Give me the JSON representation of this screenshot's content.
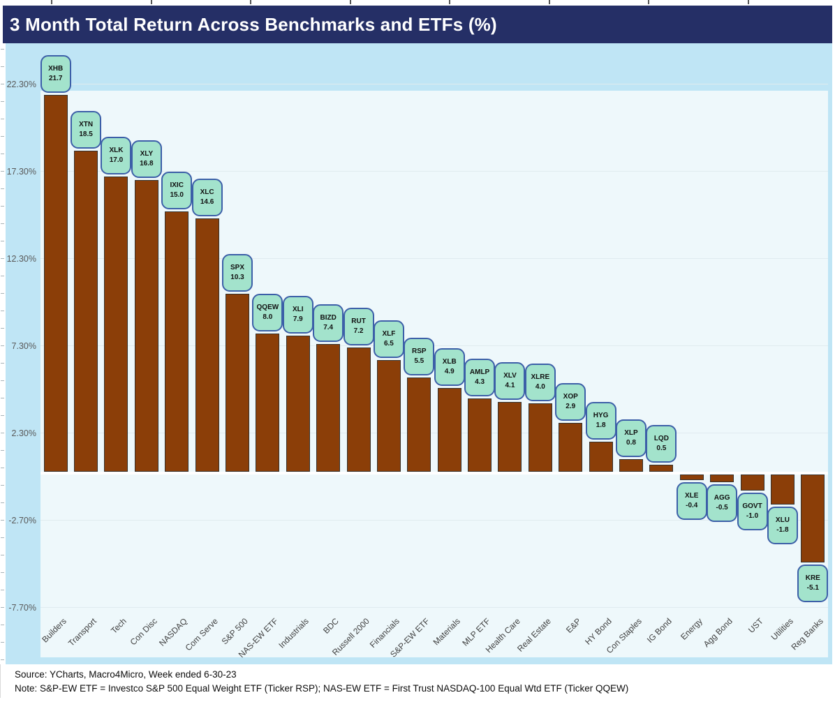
{
  "title": "3 Month Total Return Across Benchmarks and ETFs (%)",
  "footer": {
    "source": "Source: YCharts, Macro4Micro, Week ended 6-30-23",
    "note": "Note: S&P-EW ETF = Investco S&P 500 Equal Weight ETF (Ticker RSP); NAS-EW ETF = First Trust NASDAQ-100 Equal Wtd ETF (Ticker QQEW)"
  },
  "colors": {
    "title_bar_bg": "#252F66",
    "title_text": "#FFFFFF",
    "chart_outer_bg": "#BFE5F5",
    "plot_bg": "#EEF8FB",
    "bar_fill": "#8B3E08",
    "bar_border": "#35312C",
    "label_box_fill": "#A3E3CC",
    "label_box_border": "#3C5FA8",
    "gridline": "#E0EBEF",
    "axis_text": "#595959",
    "x_axis_text": "#3F3F3F"
  },
  "chart_data": {
    "type": "bar",
    "title": "3 Month Total Return Across Benchmarks and ETFs (%)",
    "grid": true,
    "legend": "none",
    "ylim": [
      -7.9,
      24.3
    ],
    "y_ticks": [
      {
        "value": 22.3,
        "label": "22.30%"
      },
      {
        "value": 17.3,
        "label": "17.30%"
      },
      {
        "value": 12.3,
        "label": "12.30%"
      },
      {
        "value": 7.3,
        "label": "7.30%"
      },
      {
        "value": 2.3,
        "label": "2.30%"
      },
      {
        "value": -2.7,
        "label": "-2.70%"
      },
      {
        "value": -7.7,
        "label": "-7.70%"
      }
    ],
    "categories": [
      "Builders",
      "Transport",
      "Tech",
      "Con Disc",
      "NASDAQ",
      "Com Serve",
      "S&P 500",
      "NAS-EW ETF",
      "Industrials",
      "BDC",
      "Russell 2000",
      "Financials",
      "S&P-EW ETF",
      "Materials",
      "MLP ETF",
      "Health Care",
      "Real Estate",
      "E&P",
      "HY Bond",
      "Con Staples",
      "IG Bond",
      "Energy",
      "Agg Bond",
      "UST",
      "Utilities",
      "Reg Banks"
    ],
    "tickers": [
      "XHB",
      "XTN",
      "XLK",
      "XLY",
      "IXIC",
      "XLC",
      "SPX",
      "QQEW",
      "XLI",
      "BIZD",
      "RUT",
      "XLF",
      "RSP",
      "XLB",
      "AMLP",
      "XLV",
      "XLRE",
      "XOP",
      "HYG",
      "XLP",
      "LQD",
      "XLE",
      "AGG",
      "GOVT",
      "XLU",
      "KRE"
    ],
    "values": [
      21.7,
      18.5,
      17.0,
      16.8,
      15.0,
      14.6,
      10.3,
      8.0,
      7.9,
      7.4,
      7.2,
      6.5,
      5.5,
      4.9,
      4.3,
      4.1,
      4.0,
      2.9,
      1.8,
      0.8,
      0.5,
      -0.4,
      -0.5,
      -1.0,
      -1.8,
      -5.1
    ]
  }
}
